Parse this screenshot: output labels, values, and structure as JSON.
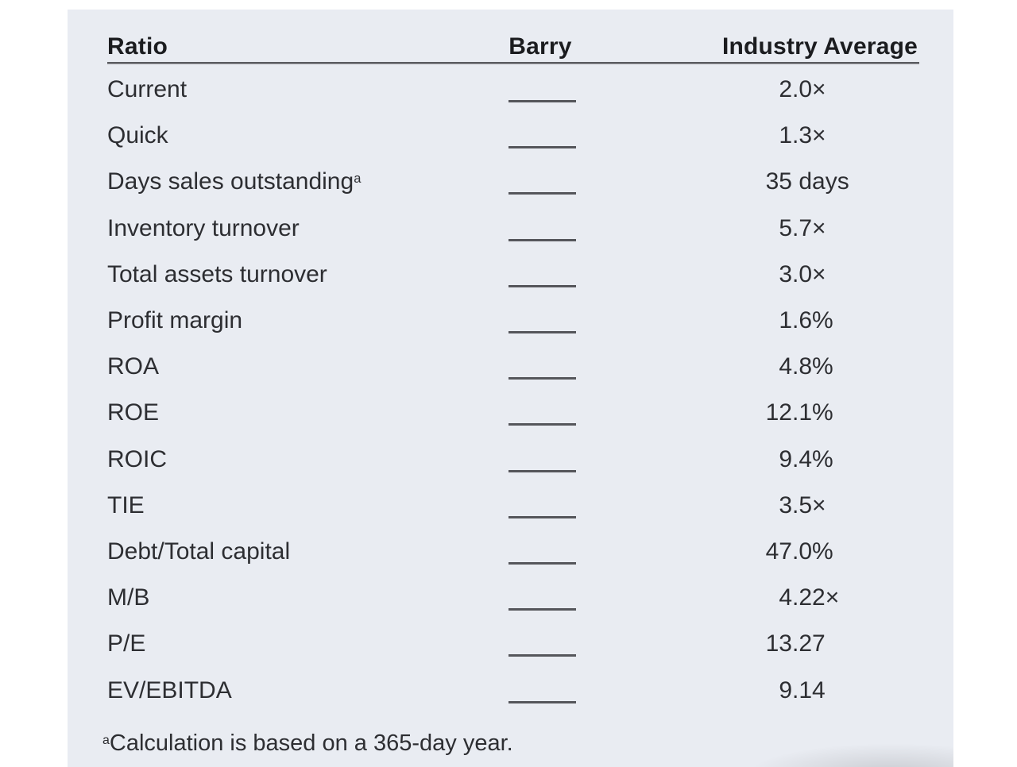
{
  "page": {
    "background_color": "#ffffff",
    "panel_background_color": "#e9ecf2",
    "rule_color": "#5b5c61",
    "text_color": "#2d2e32"
  },
  "table": {
    "headers": {
      "ratio": "Ratio",
      "barry": "Barry",
      "industry_average": "Industry Average"
    },
    "rows": [
      {
        "ratio": "Current",
        "barry": "",
        "industry_average": "2.0×"
      },
      {
        "ratio": "Quick",
        "barry": "",
        "industry_average": "1.3×"
      },
      {
        "ratio": "Days sales outstanding",
        "ratio_superscript": "a",
        "barry": "",
        "industry_average": "35 days"
      },
      {
        "ratio": "Inventory turnover",
        "barry": "",
        "industry_average": "5.7×"
      },
      {
        "ratio": "Total assets turnover",
        "barry": "",
        "industry_average": "3.0×"
      },
      {
        "ratio": "Profit margin",
        "barry": "",
        "industry_average": "1.6%"
      },
      {
        "ratio": "ROA",
        "barry": "",
        "industry_average": "4.8%"
      },
      {
        "ratio": "ROE",
        "barry": "",
        "industry_average": "12.1%"
      },
      {
        "ratio": "ROIC",
        "barry": "",
        "industry_average": "9.4%"
      },
      {
        "ratio": "TIE",
        "barry": "",
        "industry_average": "3.5×"
      },
      {
        "ratio": "Debt/Total capital",
        "barry": "",
        "industry_average": "47.0%"
      },
      {
        "ratio": "M/B",
        "barry": "",
        "industry_average": "4.22×"
      },
      {
        "ratio": "P/E",
        "barry": "",
        "industry_average": "13.27"
      },
      {
        "ratio": "EV/EBITDA",
        "barry": "",
        "industry_average": "9.14"
      }
    ],
    "footnote": {
      "marker": "a",
      "text": "Calculation is based on a 365-day year."
    }
  }
}
